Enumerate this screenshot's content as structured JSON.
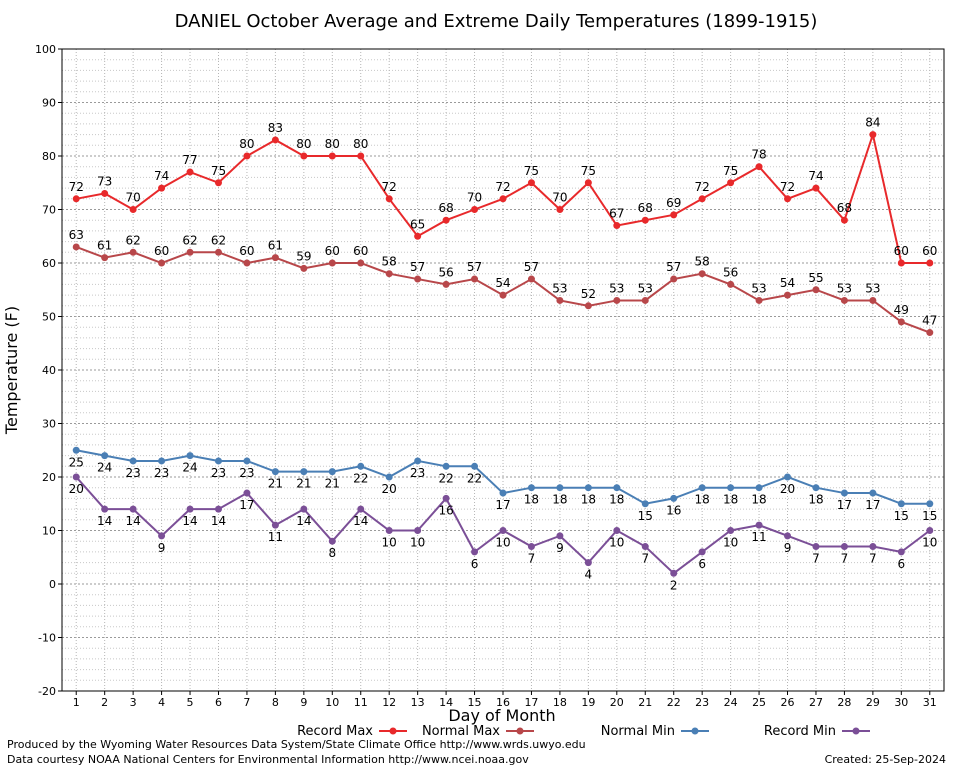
{
  "chart_data": {
    "type": "line",
    "title": "DANIEL October Average and Extreme Daily Temperatures (1899-1915)",
    "xlabel": "Day of Month",
    "ylabel": "Temperature (F)",
    "ylim": [
      -20,
      100
    ],
    "yticks": [
      -20,
      -10,
      0,
      10,
      20,
      30,
      40,
      50,
      60,
      70,
      80,
      90,
      100
    ],
    "x": [
      1,
      2,
      3,
      4,
      5,
      6,
      7,
      8,
      9,
      10,
      11,
      12,
      13,
      14,
      15,
      16,
      17,
      18,
      19,
      20,
      21,
      22,
      23,
      24,
      25,
      26,
      27,
      28,
      29,
      30,
      31
    ],
    "grid": true,
    "legend_position": "bottom",
    "series": [
      {
        "name": "Record Max",
        "color": "#e8292b",
        "label_side": "above",
        "values": [
          72,
          73,
          70,
          74,
          77,
          75,
          80,
          83,
          80,
          80,
          80,
          72,
          65,
          68,
          70,
          72,
          75,
          70,
          75,
          67,
          68,
          69,
          72,
          75,
          78,
          72,
          74,
          68,
          84,
          60,
          60
        ]
      },
      {
        "name": "Normal Max",
        "color": "#b8474a",
        "label_side": "above",
        "values": [
          63,
          61,
          62,
          60,
          62,
          62,
          60,
          61,
          59,
          60,
          60,
          58,
          57,
          56,
          57,
          54,
          57,
          53,
          52,
          53,
          53,
          57,
          58,
          56,
          53,
          54,
          55,
          53,
          53,
          49,
          47
        ]
      },
      {
        "name": "Normal Min",
        "color": "#4a7fb5",
        "label_side": "below",
        "values": [
          25,
          24,
          23,
          23,
          24,
          23,
          23,
          21,
          21,
          21,
          22,
          20,
          23,
          22,
          22,
          17,
          18,
          18,
          18,
          18,
          15,
          16,
          18,
          18,
          18,
          20,
          18,
          17,
          17,
          15,
          15
        ]
      },
      {
        "name": "Record Min",
        "color": "#7b4f97",
        "label_side": "below",
        "values": [
          20,
          14,
          14,
          9,
          14,
          14,
          17,
          11,
          14,
          8,
          14,
          10,
          10,
          16,
          6,
          10,
          7,
          9,
          4,
          10,
          7,
          2,
          6,
          10,
          11,
          9,
          7,
          7,
          7,
          6,
          10
        ]
      }
    ]
  },
  "footer": {
    "line1": "Produced by the Wyoming Water Resources Data System/State Climate Office http://www.wrds.uwyo.edu",
    "line2": "Data courtesy NOAA National Centers for Environmental Information http://www.ncei.noaa.gov",
    "created": "Created:  25-Sep-2024"
  }
}
